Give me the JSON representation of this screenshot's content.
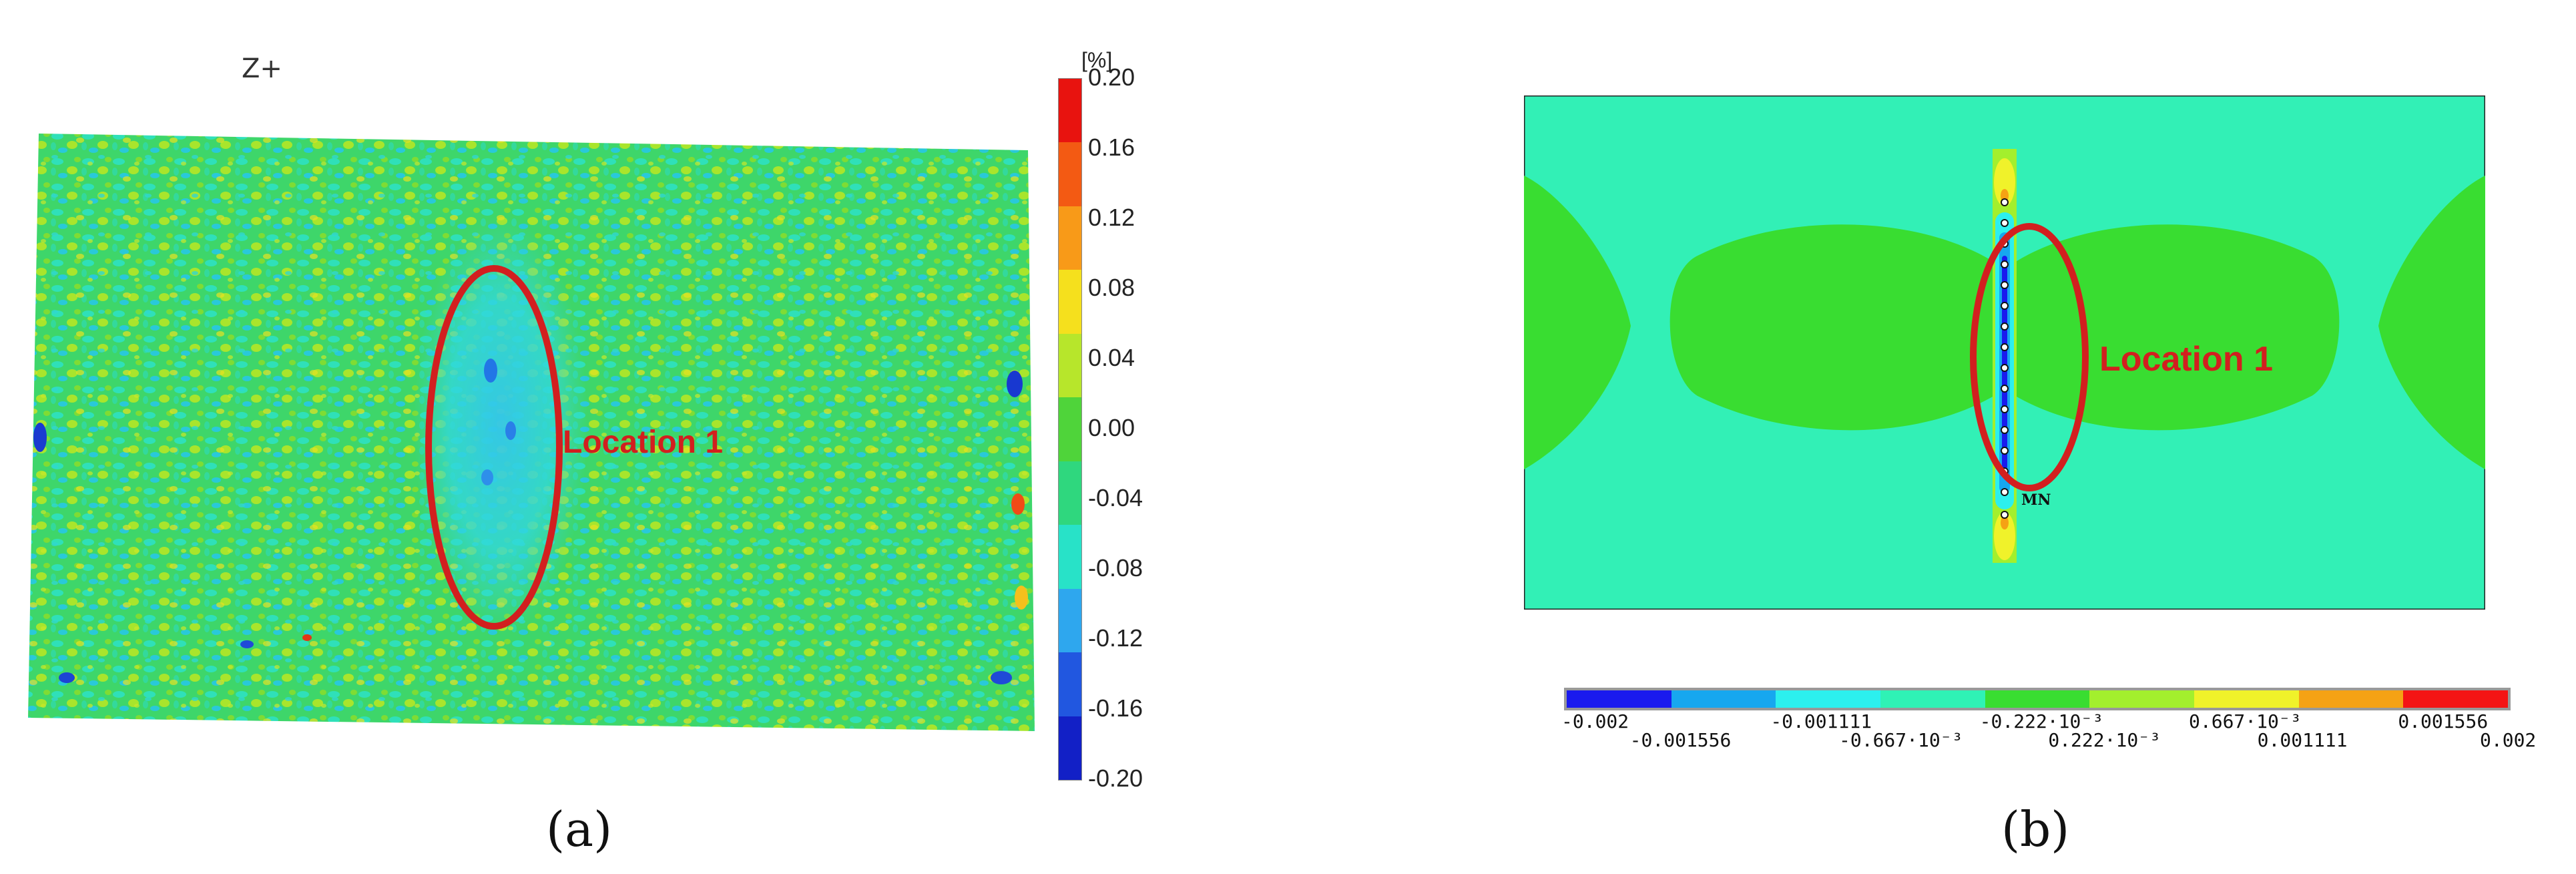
{
  "panel_a": {
    "view_label": "Z+",
    "location_label": "Location 1",
    "caption": "(a)",
    "colorbar": {
      "unit": "[%]",
      "ticks": [
        "0.20",
        "0.16",
        "0.12",
        "0.08",
        "0.04",
        "0.00",
        "-0.04",
        "-0.08",
        "-0.12",
        "-0.16",
        "-0.20"
      ],
      "colors": [
        "#e8130f",
        "#f35a13",
        "#f89a18",
        "#f5e01d",
        "#b7e62b",
        "#4fd43a",
        "#2fd77e",
        "#28e2c8",
        "#2ea7ee",
        "#2157e0",
        "#1220c6"
      ]
    }
  },
  "panel_b": {
    "location_label": "Location 1",
    "caption": "(b)",
    "marker_label": "MN",
    "colorbar": {
      "top_ticks": [
        "-0.002",
        "-0.001111",
        "-0.222·10⁻³",
        "0.667·10⁻³",
        "0.001556"
      ],
      "bottom_ticks": [
        "-0.001556",
        "-0.667·10⁻³",
        "0.222·10⁻³",
        "0.001111",
        "0.002"
      ],
      "colors": [
        "#1a1aee",
        "#17a7ef",
        "#2cf0ee",
        "#2ff2b5",
        "#39dd31",
        "#a3ef2d",
        "#f0f22a",
        "#f5a214",
        "#f41414"
      ]
    }
  }
}
